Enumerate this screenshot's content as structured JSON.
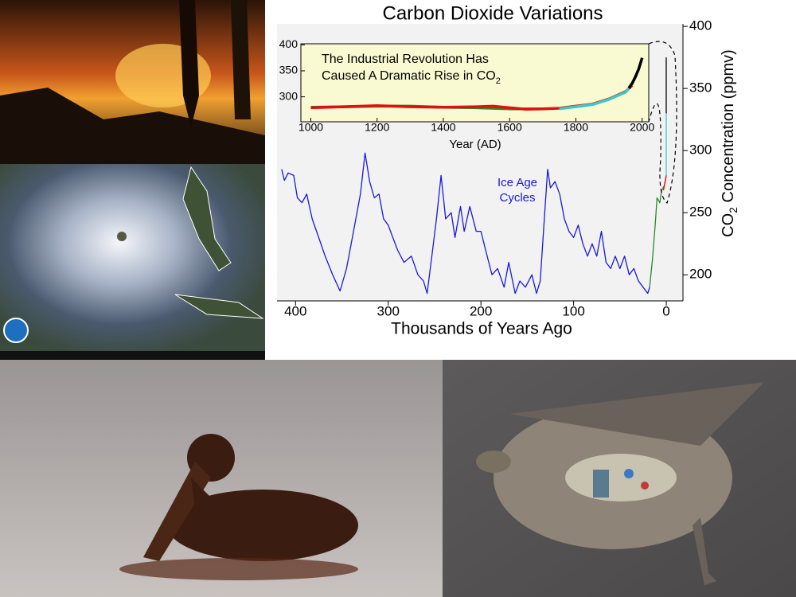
{
  "chart_data": [
    {
      "type": "line",
      "title": "Carbon Dioxide Variations",
      "xlabel": "Thousands of Years Ago",
      "ylabel": [
        "CO",
        "2",
        " Concentration (ppmv)"
      ],
      "annotation": [
        "Ice Age",
        "Cycles"
      ],
      "xlim": [
        420,
        -18
      ],
      "ylim": [
        179,
        402
      ],
      "xticks": [
        400,
        300,
        200,
        100,
        0
      ],
      "yticks": [
        200,
        250,
        300,
        350,
        400
      ],
      "series": [
        {
          "color": "#1a1adb",
          "x": [
            415,
            412,
            408,
            402,
            398,
            393,
            388,
            382,
            375,
            368,
            360,
            352,
            345,
            340,
            335,
            330,
            325,
            320,
            315,
            310,
            305,
            300,
            295,
            290,
            283,
            275,
            268,
            262,
            258,
            253,
            248,
            243,
            238,
            232,
            228,
            222,
            218,
            212,
            205,
            200,
            195,
            188,
            182,
            175,
            170,
            163,
            158,
            152,
            145,
            140,
            136,
            132,
            128,
            125,
            120,
            115,
            110,
            105,
            100,
            95,
            90,
            85,
            80,
            75,
            70,
            65,
            60,
            55,
            50,
            45,
            40,
            35,
            30,
            25,
            20,
            18
          ],
          "values": [
            285,
            276,
            282,
            280,
            262,
            258,
            265,
            245,
            230,
            215,
            200,
            187,
            205,
            225,
            245,
            265,
            298,
            275,
            262,
            265,
            245,
            240,
            230,
            220,
            210,
            215,
            200,
            195,
            185,
            215,
            245,
            280,
            245,
            250,
            230,
            255,
            235,
            255,
            235,
            235,
            220,
            200,
            205,
            190,
            210,
            185,
            195,
            190,
            200,
            185,
            195,
            240,
            285,
            270,
            275,
            265,
            245,
            235,
            230,
            240,
            225,
            215,
            225,
            215,
            235,
            210,
            205,
            215,
            205,
            215,
            200,
            205,
            195,
            190,
            185,
            190
          ]
        },
        {
          "color": "#2a8a2a",
          "x": [
            18,
            15,
            12,
            10,
            7,
            5,
            2,
            0
          ],
          "values": [
            190,
            212,
            240,
            262,
            258,
            268,
            272,
            280
          ]
        },
        {
          "color": "#e01010",
          "x": [
            3,
            1,
            0
          ],
          "values": [
            268,
            276,
            280
          ]
        },
        {
          "color": "#3cc8c8",
          "x": [
            0,
            0
          ],
          "values": [
            280,
            330
          ]
        },
        {
          "color": "#000000",
          "x": [
            0,
            0
          ],
          "values": [
            330,
            375
          ]
        }
      ]
    },
    {
      "type": "line",
      "title_lines": [
        "The Industrial Revolution Has",
        "Caused A Dramatic Rise in CO"
      ],
      "title_subscript": "2",
      "xlabel": "Year (AD)",
      "xlim": [
        970,
        2020
      ],
      "ylim": [
        252,
        402
      ],
      "xticks": [
        1000,
        1200,
        1400,
        1600,
        1800,
        2000
      ],
      "yticks": [
        300,
        350,
        400
      ],
      "series": [
        {
          "color": "#2a8a2a",
          "x": [
            1000,
            1100,
            1200,
            1300,
            1400,
            1500,
            1600,
            1700
          ],
          "values": [
            280,
            281,
            282,
            282,
            280,
            279,
            277,
            277
          ]
        },
        {
          "color": "#e01010",
          "x": [
            1000,
            1100,
            1200,
            1300,
            1400,
            1500,
            1550,
            1600,
            1650,
            1700,
            1750,
            1800,
            1850,
            1900,
            1950,
            1970
          ],
          "values": [
            279,
            281,
            283,
            281,
            280,
            281,
            282,
            279,
            276,
            277,
            278,
            282,
            286,
            296,
            310,
            322
          ]
        },
        {
          "color": "#3cc8c8",
          "x": [
            1750,
            1800,
            1850,
            1900,
            1950,
            1960
          ],
          "values": [
            277,
            281,
            285,
            295,
            309,
            316
          ]
        },
        {
          "color": "#000000",
          "x": [
            1960,
            1970,
            1980,
            1990,
            2000
          ],
          "values": [
            317,
            326,
            339,
            354,
            375
          ]
        }
      ]
    }
  ]
}
